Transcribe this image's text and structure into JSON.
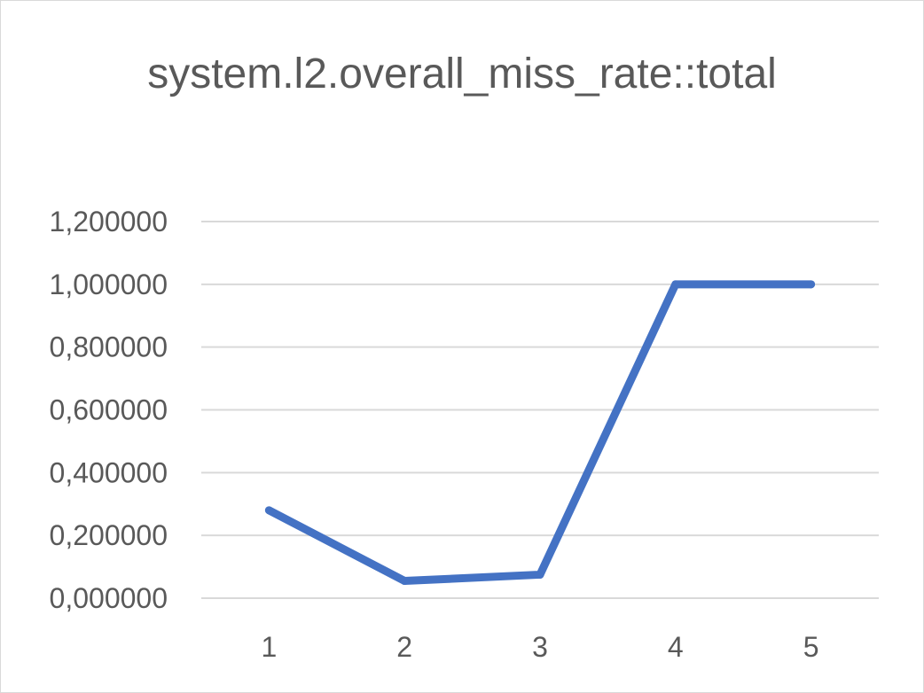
{
  "chart_data": {
    "type": "line",
    "title": "system.l2.overall_miss_rate::total",
    "xlabel": "",
    "ylabel": "",
    "categories": [
      "1",
      "2",
      "3",
      "4",
      "5"
    ],
    "series": [
      {
        "values": [
          0.28,
          0.055,
          0.075,
          1.0,
          1.0
        ],
        "color": "#4472c4"
      }
    ],
    "y_ticks": [
      "0,000000",
      "0,200000",
      "0,400000",
      "0,600000",
      "0,800000",
      "1,000000",
      "1,200000"
    ],
    "ylim": [
      0,
      1.2
    ],
    "grid": true,
    "legend": "none"
  }
}
